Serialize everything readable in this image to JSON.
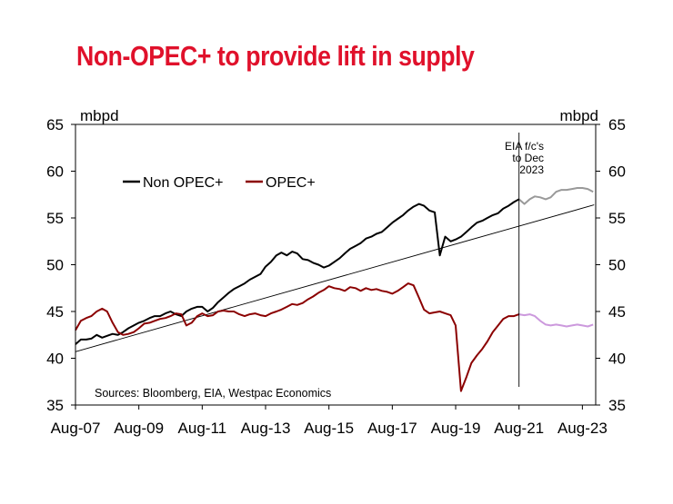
{
  "chart_data": {
    "type": "line",
    "title": "Non-OPEC+ to provide lift in supply",
    "ylabel_left": "mbpd",
    "ylabel_right": "mbpd",
    "ylim": [
      35,
      65
    ],
    "yticks": [
      35,
      40,
      45,
      50,
      55,
      60,
      65
    ],
    "xlim": [
      2007.58,
      2024.0
    ],
    "x_tick_labels": [
      "Aug-07",
      "Aug-09",
      "Aug-11",
      "Aug-13",
      "Aug-15",
      "Aug-17",
      "Aug-19",
      "Aug-21",
      "Aug-23"
    ],
    "x_tick_values": [
      2007.58,
      2009.58,
      2011.58,
      2013.58,
      2015.58,
      2017.58,
      2019.58,
      2021.58,
      2023.58
    ],
    "legend": [
      "Non OPEC+",
      "OPEC+"
    ],
    "legend_placement": "top-left",
    "annotation": "EIA f/c's\nto Dec\n2023",
    "forecast_start": 2021.58,
    "source": "Sources: Bloomberg, EIA, Westpac Economics",
    "grid": false,
    "colors": {
      "title": "#e0112b",
      "non_opec": "#000000",
      "opec": "#8b0000",
      "non_opec_forecast": "#999999",
      "opec_forecast": "#cc99dd",
      "trend": "#000000"
    },
    "trend": {
      "x": [
        2007.58,
        2023.95
      ],
      "y": [
        40.7,
        56.4
      ]
    },
    "series": [
      {
        "name": "Non OPEC+",
        "x": [
          2007.58,
          2007.75,
          2007.92,
          2008.08,
          2008.25,
          2008.42,
          2008.58,
          2008.75,
          2008.92,
          2009.08,
          2009.25,
          2009.42,
          2009.58,
          2009.75,
          2009.92,
          2010.08,
          2010.25,
          2010.42,
          2010.58,
          2010.75,
          2010.92,
          2011.08,
          2011.25,
          2011.42,
          2011.58,
          2011.75,
          2011.92,
          2012.08,
          2012.25,
          2012.42,
          2012.58,
          2012.75,
          2012.92,
          2013.08,
          2013.25,
          2013.42,
          2013.58,
          2013.75,
          2013.92,
          2014.08,
          2014.25,
          2014.42,
          2014.58,
          2014.75,
          2014.92,
          2015.08,
          2015.25,
          2015.42,
          2015.58,
          2015.75,
          2015.92,
          2016.08,
          2016.25,
          2016.42,
          2016.58,
          2016.75,
          2016.92,
          2017.08,
          2017.25,
          2017.42,
          2017.58,
          2017.75,
          2017.92,
          2018.08,
          2018.25,
          2018.42,
          2018.58,
          2018.75,
          2018.92,
          2019.08,
          2019.25,
          2019.42,
          2019.58,
          2019.75,
          2019.92,
          2020.08,
          2020.25,
          2020.42,
          2020.58,
          2020.75,
          2020.92,
          2021.08,
          2021.25,
          2021.42,
          2021.58
        ],
        "values": [
          41.5,
          42.0,
          42.0,
          42.1,
          42.5,
          42.2,
          42.4,
          42.6,
          42.5,
          42.8,
          43.2,
          43.5,
          43.8,
          44.0,
          44.3,
          44.5,
          44.5,
          44.8,
          45.0,
          44.7,
          44.5,
          45.0,
          45.3,
          45.5,
          45.5,
          45.0,
          45.4,
          46.0,
          46.5,
          47.0,
          47.4,
          47.7,
          48.0,
          48.4,
          48.7,
          49.0,
          49.8,
          50.3,
          51.0,
          51.3,
          51.0,
          51.4,
          51.2,
          50.6,
          50.5,
          50.2,
          50.0,
          49.7,
          49.9,
          50.3,
          50.7,
          51.2,
          51.7,
          52.0,
          52.3,
          52.8,
          53.0,
          53.3,
          53.5,
          54.0,
          54.5,
          54.9,
          55.3,
          55.8,
          56.2,
          56.5,
          56.3,
          55.8,
          55.6,
          51.0,
          53.0,
          52.5,
          52.7,
          53.0,
          53.5,
          54.0,
          54.5,
          54.7,
          55.0,
          55.3,
          55.5,
          56.0,
          56.3,
          56.7,
          57.0
        ]
      },
      {
        "name": "OPEC+",
        "x": [
          2007.58,
          2007.75,
          2007.92,
          2008.08,
          2008.25,
          2008.42,
          2008.58,
          2008.75,
          2008.92,
          2009.08,
          2009.25,
          2009.42,
          2009.58,
          2009.75,
          2009.92,
          2010.08,
          2010.25,
          2010.42,
          2010.58,
          2010.75,
          2010.92,
          2011.08,
          2011.25,
          2011.42,
          2011.58,
          2011.75,
          2011.92,
          2012.08,
          2012.25,
          2012.42,
          2012.58,
          2012.75,
          2012.92,
          2013.08,
          2013.25,
          2013.42,
          2013.58,
          2013.75,
          2013.92,
          2014.08,
          2014.25,
          2014.42,
          2014.58,
          2014.75,
          2014.92,
          2015.08,
          2015.25,
          2015.42,
          2015.58,
          2015.75,
          2015.92,
          2016.08,
          2016.25,
          2016.42,
          2016.58,
          2016.75,
          2016.92,
          2017.08,
          2017.25,
          2017.42,
          2017.58,
          2017.75,
          2017.92,
          2018.08,
          2018.25,
          2018.42,
          2018.58,
          2018.75,
          2018.92,
          2019.08,
          2019.25,
          2019.42,
          2019.58,
          2019.75,
          2019.92,
          2020.08,
          2020.25,
          2020.42,
          2020.58,
          2020.75,
          2020.92,
          2021.08,
          2021.25,
          2021.42,
          2021.58
        ],
        "values": [
          43.0,
          44.0,
          44.3,
          44.5,
          45.0,
          45.3,
          45.0,
          43.8,
          42.8,
          42.5,
          42.6,
          42.8,
          43.2,
          43.7,
          43.8,
          44.0,
          44.2,
          44.3,
          44.5,
          44.8,
          44.7,
          43.5,
          43.8,
          44.5,
          44.8,
          44.5,
          44.6,
          45.0,
          45.1,
          45.0,
          45.0,
          44.7,
          44.5,
          44.7,
          44.8,
          44.6,
          44.5,
          44.8,
          45.0,
          45.2,
          45.5,
          45.8,
          45.7,
          45.9,
          46.3,
          46.6,
          47.0,
          47.3,
          47.7,
          47.5,
          47.4,
          47.2,
          47.6,
          47.5,
          47.2,
          47.5,
          47.3,
          47.4,
          47.2,
          47.1,
          46.9,
          47.2,
          47.6,
          48.0,
          47.8,
          46.5,
          45.2,
          44.8,
          44.9,
          45.0,
          44.8,
          44.6,
          43.5,
          36.5,
          38.0,
          39.5,
          40.3,
          41.0,
          41.8,
          42.8,
          43.5,
          44.2,
          44.5,
          44.5,
          44.7
        ]
      },
      {
        "name": "",
        "forecast_of": "Non OPEC+",
        "x": [
          2021.58,
          2021.75,
          2021.92,
          2022.08,
          2022.25,
          2022.42,
          2022.58,
          2022.75,
          2022.92,
          2023.08,
          2023.25,
          2023.42,
          2023.58,
          2023.75,
          2023.92
        ],
        "values": [
          57.0,
          56.5,
          57.0,
          57.3,
          57.2,
          57.0,
          57.2,
          57.8,
          58.0,
          58.0,
          58.1,
          58.2,
          58.2,
          58.1,
          57.8
        ]
      },
      {
        "name": "",
        "forecast_of": "OPEC+",
        "x": [
          2021.58,
          2021.75,
          2021.92,
          2022.08,
          2022.25,
          2022.42,
          2022.58,
          2022.75,
          2022.92,
          2023.08,
          2023.25,
          2023.42,
          2023.58,
          2023.75,
          2023.92
        ],
        "values": [
          44.7,
          44.6,
          44.7,
          44.5,
          44.0,
          43.6,
          43.5,
          43.6,
          43.5,
          43.4,
          43.5,
          43.6,
          43.5,
          43.4,
          43.6
        ]
      }
    ]
  }
}
